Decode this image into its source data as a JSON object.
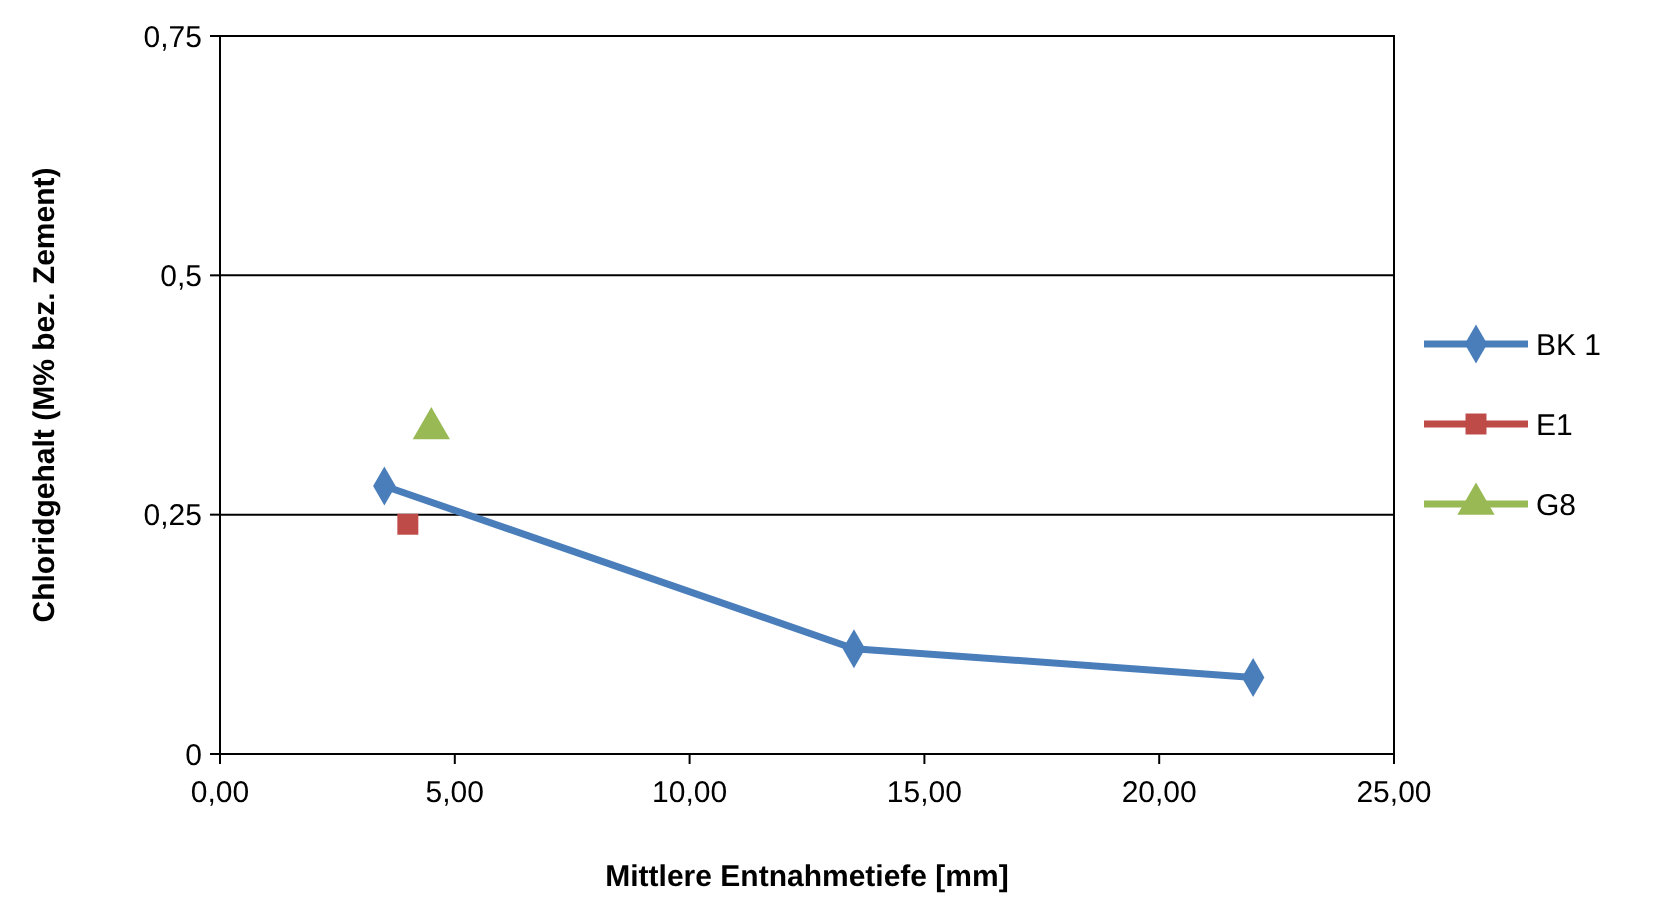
{
  "chart_data": {
    "type": "line",
    "xlabel": "Mittlere Entnahmetiefe [mm]",
    "ylabel": "Chloridgehalt (M% bez. Zement)",
    "xlim": [
      0,
      25
    ],
    "xticks": [
      {
        "value": 0,
        "label": "0,00"
      },
      {
        "value": 5,
        "label": "5,00"
      },
      {
        "value": 10,
        "label": "10,00"
      },
      {
        "value": 15,
        "label": "15,00"
      },
      {
        "value": 20,
        "label": "20,00"
      },
      {
        "value": 25,
        "label": "25,00"
      }
    ],
    "ylim": [
      0,
      0.75
    ],
    "yticks": [
      0,
      {
        "value": 0.25,
        "label": "0,25"
      },
      {
        "value": 0.5,
        "label": "0,5"
      },
      {
        "value": 0.75,
        "label": "0,75"
      }
    ],
    "grid": "y",
    "legend": "right",
    "series": [
      {
        "name": "BK 1",
        "color": "#4a7ebb",
        "marker": "diamond",
        "x": [
          3.5,
          13.5,
          22
        ],
        "values": [
          0.28,
          0.11,
          0.08
        ]
      },
      {
        "name": "E1",
        "type": "scatter",
        "color": "#be4b48",
        "marker": "square",
        "x": [
          4
        ],
        "values": [
          0.24
        ]
      },
      {
        "name": "G8",
        "type": "scatter",
        "color": "#98b954",
        "marker": "triangle",
        "x": [
          4.5
        ],
        "values": [
          0.34
        ]
      }
    ]
  }
}
